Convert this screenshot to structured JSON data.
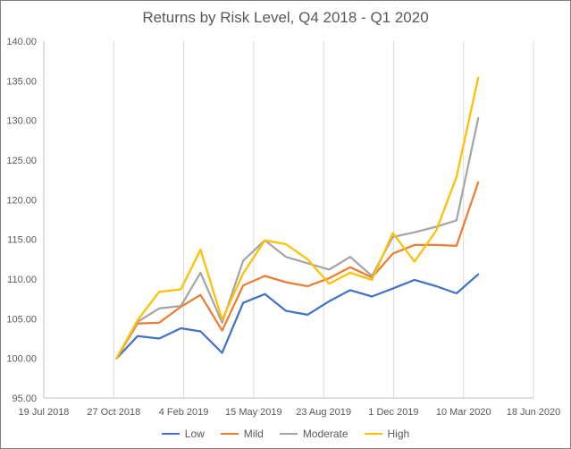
{
  "chart_data": {
    "type": "line",
    "title": "Returns by Risk Level, Q4 2018  - Q1 2020",
    "xlabel": "",
    "ylabel": "",
    "x_tick_labels": [
      "19 Jul 2018",
      "27 Oct 2018",
      "4 Feb 2019",
      "15 May 2019",
      "23 Aug 2019",
      "1 Dec 2019",
      "10 Mar 2020",
      "18 Jun 2020"
    ],
    "y_tick_labels": [
      "95.00",
      "100.00",
      "105.00",
      "110.00",
      "115.00",
      "120.00",
      "125.00",
      "130.00",
      "135.00",
      "140.00"
    ],
    "xlim": [
      "2018-07-19",
      "2020-06-18"
    ],
    "ylim": [
      95,
      140
    ],
    "grid": "vertical",
    "legend_position": "bottom",
    "x": [
      "2018-10-31",
      "2018-11-30",
      "2018-12-31",
      "2019-01-31",
      "2019-02-28",
      "2019-03-31",
      "2019-04-30",
      "2019-05-31",
      "2019-06-30",
      "2019-07-31",
      "2019-08-31",
      "2019-09-30",
      "2019-10-31",
      "2019-11-30",
      "2019-12-31",
      "2020-01-31",
      "2020-02-29",
      "2020-03-31"
    ],
    "series": [
      {
        "name": "Low",
        "color": "#4472C4",
        "values": [
          100.0,
          102.8,
          102.5,
          103.8,
          103.4,
          100.7,
          107.0,
          108.1,
          106.0,
          105.5,
          107.2,
          108.6,
          107.8,
          108.8,
          109.9,
          109.1,
          108.2,
          110.6
        ]
      },
      {
        "name": "Mild",
        "color": "#ED7D31",
        "values": [
          100.0,
          104.4,
          104.5,
          106.5,
          108.0,
          103.5,
          109.2,
          110.4,
          109.6,
          109.1,
          110.1,
          111.5,
          110.2,
          113.2,
          114.3,
          114.3,
          114.2,
          122.2
        ]
      },
      {
        "name": "Moderate",
        "color": "#A5A5A5",
        "values": [
          100.0,
          104.6,
          106.3,
          106.6,
          110.8,
          104.5,
          112.3,
          114.9,
          112.8,
          112.0,
          111.2,
          112.8,
          110.4,
          115.3,
          115.9,
          116.6,
          117.4,
          130.3
        ]
      },
      {
        "name": "High",
        "color": "#FFC000",
        "values": [
          100.0,
          104.8,
          108.4,
          108.7,
          113.7,
          104.9,
          110.7,
          114.9,
          114.4,
          112.5,
          109.4,
          110.8,
          109.9,
          115.8,
          112.2,
          116.1,
          122.9,
          135.4
        ]
      }
    ]
  }
}
